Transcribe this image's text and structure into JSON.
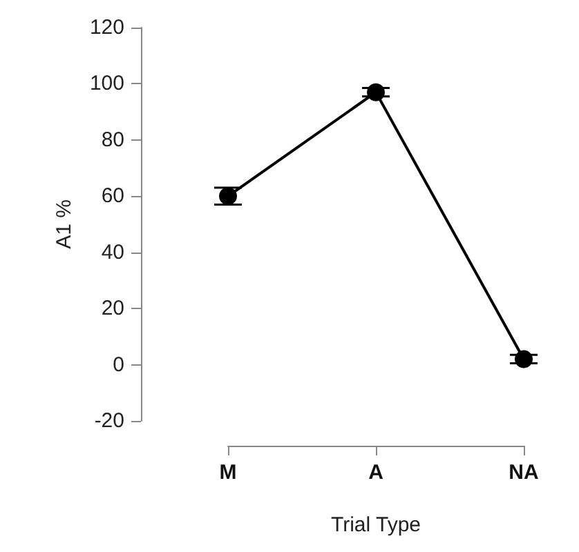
{
  "chart_data": {
    "type": "line",
    "xlabel": "Trial Type",
    "ylabel": "A1 %",
    "categories": [
      "M",
      "A",
      "NA"
    ],
    "series": [
      {
        "color": "#000000",
        "values": [
          60,
          97,
          2
        ],
        "errors": [
          3,
          1.5,
          1.5
        ]
      }
    ],
    "ylim": [
      -20,
      120
    ],
    "yticks": [
      -20,
      0,
      20,
      40,
      60,
      80,
      100,
      120
    ],
    "marker": "circle",
    "line_style": "solid"
  }
}
